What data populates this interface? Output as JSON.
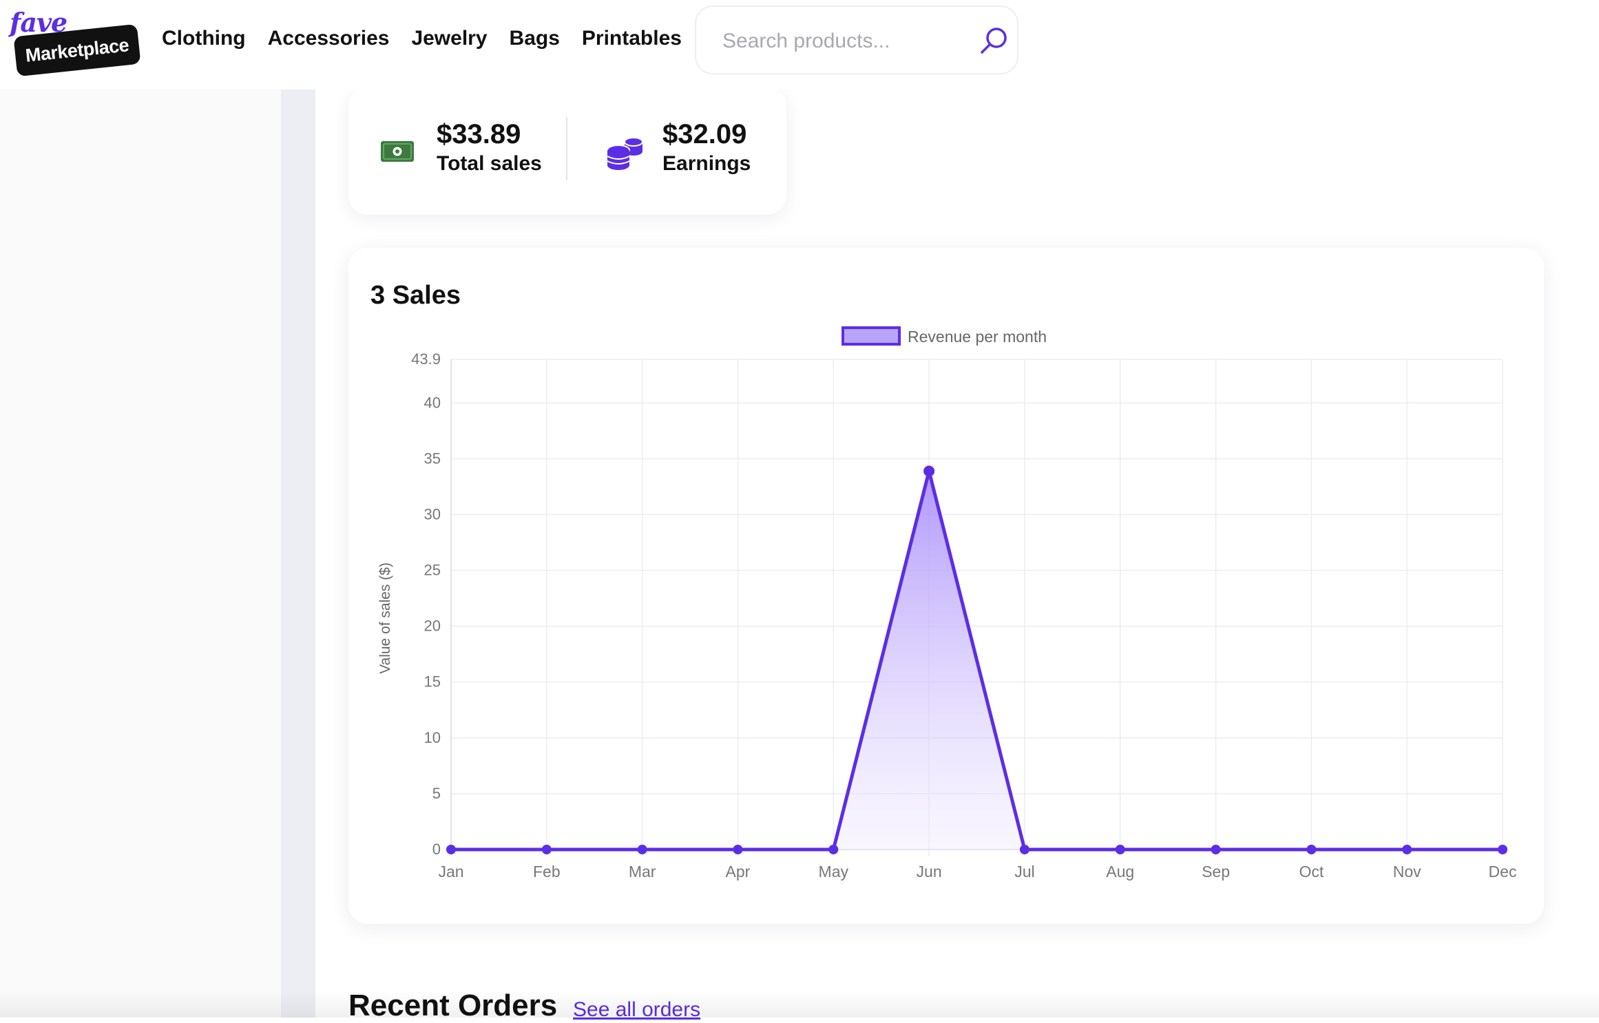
{
  "brand": {
    "logo_top": "fave",
    "logo_badge": "Marketplace",
    "accent_color": "#5b2ee6"
  },
  "nav": {
    "items": [
      "Clothing",
      "Accessories",
      "Jewelry",
      "Bags",
      "Printables"
    ]
  },
  "search": {
    "placeholder": "Search products...",
    "value": ""
  },
  "stats": {
    "total_sales": {
      "value": "$33.89",
      "label": "Total sales",
      "icon": "money-icon"
    },
    "earnings": {
      "value": "$32.09",
      "label": "Earnings",
      "icon": "coins-icon"
    }
  },
  "chart_card": {
    "heading": "3 Sales"
  },
  "chart_data": {
    "type": "line",
    "title": "",
    "legend": "Revenue per month",
    "legend_placement": "top-center",
    "xlabel": "",
    "ylabel": "Value of sales ($)",
    "categories": [
      "Jan",
      "Feb",
      "Mar",
      "Apr",
      "May",
      "Jun",
      "Jul",
      "Aug",
      "Sep",
      "Oct",
      "Nov",
      "Dec"
    ],
    "values": [
      0,
      0,
      0,
      0,
      0,
      33.89,
      0,
      0,
      0,
      0,
      0,
      0
    ],
    "ylim": [
      0,
      43.9
    ],
    "yticks": [
      0,
      5,
      10,
      15,
      20,
      25,
      30,
      35,
      40,
      43.9
    ],
    "grid": true,
    "fill": "gradient",
    "line_color": "#5b2ee6"
  },
  "recent_orders": {
    "title": "Recent Orders",
    "link": "See all orders"
  }
}
